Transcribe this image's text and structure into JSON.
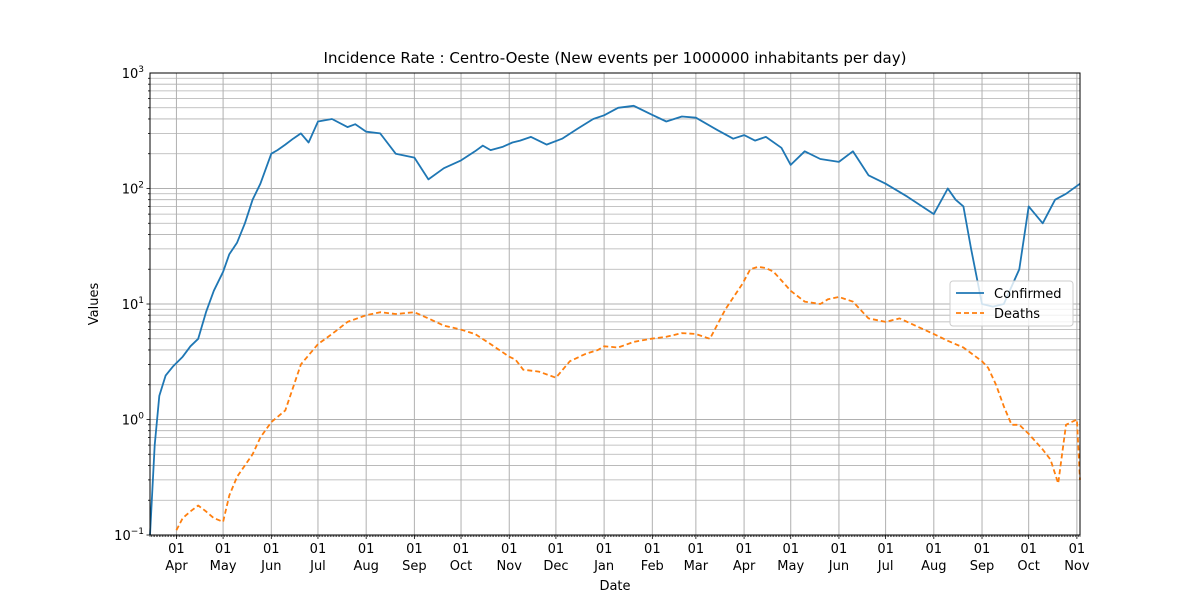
{
  "chart_data": {
    "type": "line",
    "title": "Incidence Rate : Centro-Oeste  (New events per 1000000 inhabitants per day)",
    "xlabel": "Date",
    "ylabel": "Values",
    "yscale": "log",
    "ylim": [
      0.1,
      1000
    ],
    "xlim": [
      "2020-03-15",
      "2021-11-03"
    ],
    "grid": true,
    "legend_position": "center-right",
    "y_tick_labels": [
      "10^-1",
      "10^0",
      "10^1",
      "10^2",
      "10^3"
    ],
    "x_ticks": [
      {
        "date": "2020-04-01",
        "day": "01",
        "month": "Apr"
      },
      {
        "date": "2020-05-01",
        "day": "01",
        "month": "May"
      },
      {
        "date": "2020-06-01",
        "day": "01",
        "month": "Jun"
      },
      {
        "date": "2020-07-01",
        "day": "01",
        "month": "Jul"
      },
      {
        "date": "2020-08-01",
        "day": "01",
        "month": "Aug"
      },
      {
        "date": "2020-09-01",
        "day": "01",
        "month": "Sep"
      },
      {
        "date": "2020-10-01",
        "day": "01",
        "month": "Oct"
      },
      {
        "date": "2020-11-01",
        "day": "01",
        "month": "Nov"
      },
      {
        "date": "2020-12-01",
        "day": "01",
        "month": "Dec"
      },
      {
        "date": "2021-01-01",
        "day": "01",
        "month": "Jan"
      },
      {
        "date": "2021-02-01",
        "day": "01",
        "month": "Feb"
      },
      {
        "date": "2021-03-01",
        "day": "01",
        "month": "Mar"
      },
      {
        "date": "2021-04-01",
        "day": "01",
        "month": "Apr"
      },
      {
        "date": "2021-05-01",
        "day": "01",
        "month": "May"
      },
      {
        "date": "2021-06-01",
        "day": "01",
        "month": "Jun"
      },
      {
        "date": "2021-07-01",
        "day": "01",
        "month": "Jul"
      },
      {
        "date": "2021-08-01",
        "day": "01",
        "month": "Aug"
      },
      {
        "date": "2021-09-01",
        "day": "01",
        "month": "Sep"
      },
      {
        "date": "2021-10-01",
        "day": "01",
        "month": "Oct"
      },
      {
        "date": "2021-11-01",
        "day": "01",
        "month": "Nov"
      }
    ],
    "series": [
      {
        "name": "Confirmed",
        "color": "#1f77b4",
        "style": "solid",
        "x": [
          "2020-03-15",
          "2020-03-18",
          "2020-03-21",
          "2020-03-25",
          "2020-03-30",
          "2020-04-05",
          "2020-04-10",
          "2020-04-15",
          "2020-04-20",
          "2020-04-25",
          "2020-05-01",
          "2020-05-05",
          "2020-05-10",
          "2020-05-15",
          "2020-05-20",
          "2020-05-25",
          "2020-06-01",
          "2020-06-05",
          "2020-06-10",
          "2020-06-15",
          "2020-06-20",
          "2020-06-25",
          "2020-07-01",
          "2020-07-10",
          "2020-07-20",
          "2020-07-25",
          "2020-08-01",
          "2020-08-10",
          "2020-08-20",
          "2020-09-01",
          "2020-09-10",
          "2020-09-20",
          "2020-10-01",
          "2020-10-10",
          "2020-10-15",
          "2020-10-20",
          "2020-10-28",
          "2020-11-03",
          "2020-11-08",
          "2020-11-15",
          "2020-11-25",
          "2020-12-05",
          "2020-12-15",
          "2020-12-25",
          "2021-01-01",
          "2021-01-10",
          "2021-01-20",
          "2021-01-31",
          "2021-02-10",
          "2021-02-20",
          "2021-03-01",
          "2021-03-15",
          "2021-03-25",
          "2021-04-01",
          "2021-04-08",
          "2021-04-15",
          "2021-04-25",
          "2021-05-01",
          "2021-05-10",
          "2021-05-20",
          "2021-06-01",
          "2021-06-10",
          "2021-06-20",
          "2021-07-01",
          "2021-07-15",
          "2021-08-01",
          "2021-08-10",
          "2021-08-15",
          "2021-08-20",
          "2021-08-25",
          "2021-09-01",
          "2021-09-08",
          "2021-09-15",
          "2021-09-25",
          "2021-10-01",
          "2021-10-10",
          "2021-10-18",
          "2021-10-25",
          "2021-11-03"
        ],
        "values": [
          0.1,
          0.6,
          1.6,
          2.4,
          2.9,
          3.5,
          4.3,
          5.0,
          8.5,
          13,
          19,
          27,
          34,
          50,
          80,
          110,
          200,
          215,
          240,
          270,
          300,
          250,
          380,
          400,
          340,
          360,
          310,
          300,
          200,
          185,
          120,
          150,
          175,
          210,
          235,
          215,
          230,
          250,
          260,
          280,
          240,
          270,
          330,
          400,
          430,
          500,
          520,
          440,
          380,
          420,
          410,
          320,
          270,
          290,
          260,
          280,
          225,
          160,
          210,
          180,
          170,
          210,
          130,
          110,
          85,
          60,
          100,
          80,
          70,
          30,
          10,
          9.5,
          10,
          20,
          70,
          50,
          80,
          90,
          110
        ]
      },
      {
        "name": "Deaths",
        "color": "#ff7f0e",
        "style": "dashed",
        "x": [
          "2020-04-01",
          "2020-04-05",
          "2020-04-10",
          "2020-04-15",
          "2020-04-20",
          "2020-04-25",
          "2020-05-01",
          "2020-05-05",
          "2020-05-10",
          "2020-05-20",
          "2020-05-25",
          "2020-06-01",
          "2020-06-10",
          "2020-06-20",
          "2020-07-01",
          "2020-07-10",
          "2020-07-20",
          "2020-08-01",
          "2020-08-10",
          "2020-08-20",
          "2020-09-01",
          "2020-09-10",
          "2020-09-20",
          "2020-10-01",
          "2020-10-10",
          "2020-10-20",
          "2020-11-01",
          "2020-11-05",
          "2020-11-10",
          "2020-11-20",
          "2020-12-01",
          "2020-12-10",
          "2020-12-20",
          "2020-12-28",
          "2021-01-01",
          "2021-01-10",
          "2021-01-20",
          "2021-01-31",
          "2021-02-10",
          "2021-02-20",
          "2021-03-01",
          "2021-03-10",
          "2021-03-20",
          "2021-03-31",
          "2021-04-05",
          "2021-04-10",
          "2021-04-15",
          "2021-04-20",
          "2021-04-25",
          "2021-05-01",
          "2021-05-10",
          "2021-05-20",
          "2021-05-25",
          "2021-06-01",
          "2021-06-10",
          "2021-06-20",
          "2021-07-01",
          "2021-07-10",
          "2021-07-20",
          "2021-08-01",
          "2021-08-10",
          "2021-08-20",
          "2021-08-28",
          "2021-09-01",
          "2021-09-05",
          "2021-09-10",
          "2021-09-15",
          "2021-09-20",
          "2021-09-25",
          "2021-10-01",
          "2021-10-10",
          "2021-10-15",
          "2021-10-20",
          "2021-10-25",
          "2021-11-01",
          "2021-11-03"
        ],
        "values": [
          0.11,
          0.14,
          0.16,
          0.18,
          0.16,
          0.14,
          0.13,
          0.22,
          0.32,
          0.5,
          0.7,
          0.95,
          1.2,
          3.0,
          4.5,
          5.5,
          7.0,
          8.0,
          8.5,
          8.2,
          8.5,
          7.5,
          6.5,
          6.0,
          5.5,
          4.5,
          3.5,
          3.3,
          2.7,
          2.6,
          2.3,
          3.2,
          3.7,
          4.0,
          4.3,
          4.2,
          4.7,
          5.0,
          5.2,
          5.6,
          5.5,
          5.0,
          9.0,
          15,
          20,
          21,
          20.5,
          19,
          16,
          13,
          10.5,
          10,
          11,
          11.5,
          10.5,
          7.5,
          7.0,
          7.5,
          6.5,
          5.5,
          4.8,
          4.2,
          3.5,
          3.2,
          2.8,
          2.0,
          1.3,
          0.9,
          0.9,
          0.75,
          0.55,
          0.45,
          0.28,
          0.9,
          1.0,
          0.3
        ]
      }
    ]
  }
}
